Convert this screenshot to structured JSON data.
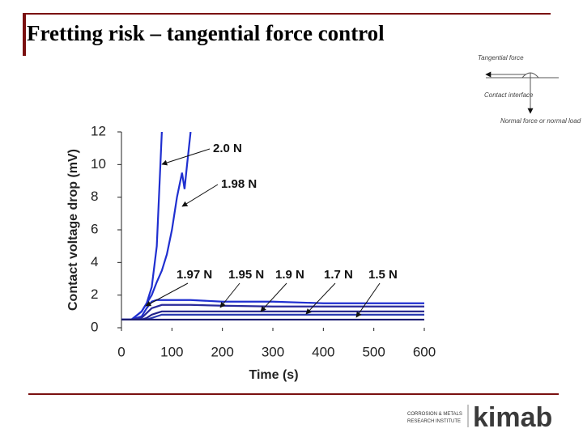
{
  "header": {
    "title": "Fretting risk – tangential force control"
  },
  "diagram": {
    "tangential": "Tangential force",
    "contact": "Contact interface",
    "normal": "Normal force or normal load"
  },
  "logo": {
    "line1": "CORROSION & METALS",
    "line2": "RESEARCH INSTITUTE",
    "brand": "kimab"
  },
  "chart_data": {
    "type": "line",
    "xlabel": "Time (s)",
    "ylabel": "Contact voltage drop (mV)",
    "x": [
      0,
      20,
      40,
      50,
      60,
      70,
      80,
      90,
      100,
      110,
      120,
      125,
      130,
      137,
      200,
      300,
      400,
      500,
      600
    ],
    "xlim": [
      0,
      600
    ],
    "xticks": [
      0,
      100,
      200,
      300,
      400,
      500,
      600
    ],
    "ylim": [
      0,
      12
    ],
    "yticks": [
      0,
      2,
      4,
      6,
      8,
      10,
      12
    ],
    "grid": false,
    "series": [
      {
        "name": "2.0 N",
        "color": "#1f2fd0",
        "values": [
          0.5,
          0.5,
          1.0,
          1.5,
          2.5,
          5,
          12,
          null,
          null,
          null,
          null,
          null,
          null,
          null,
          null,
          null,
          null,
          null,
          null
        ]
      },
      {
        "name": "1.98 N",
        "color": "#1f2fd0",
        "values": [
          0.5,
          0.5,
          1.0,
          1.5,
          2.0,
          2.8,
          3.5,
          4.5,
          6,
          8,
          9.5,
          8.5,
          10,
          12,
          null,
          null,
          null,
          null,
          null
        ]
      },
      {
        "name": "1.97 N",
        "color": "#1f2fd0",
        "values": [
          0.5,
          0.5,
          0.7,
          1.2,
          1.6,
          1.7,
          1.7,
          1.7,
          1.7,
          1.7,
          1.7,
          1.7,
          1.7,
          1.7,
          1.6,
          1.6,
          1.5,
          1.5,
          1.5
        ]
      },
      {
        "name": "1.95 N",
        "color": "#2a2a9a",
        "values": [
          0.5,
          0.5,
          0.6,
          0.9,
          1.2,
          1.3,
          1.4,
          1.4,
          1.4,
          1.4,
          1.4,
          1.4,
          1.4,
          1.4,
          1.35,
          1.3,
          1.3,
          1.3,
          1.3
        ]
      },
      {
        "name": "1.9 N",
        "color": "#20208a",
        "values": [
          0.5,
          0.5,
          0.5,
          0.6,
          0.8,
          0.9,
          1.0,
          1.0,
          1.0,
          1.0,
          1.0,
          1.0,
          1.0,
          1.0,
          1.0,
          1.0,
          1.0,
          1.0,
          1.0
        ]
      },
      {
        "name": "1.7 N",
        "color": "#2a3ab0",
        "values": [
          0.5,
          0.5,
          0.5,
          0.5,
          0.6,
          0.7,
          0.8,
          0.8,
          0.8,
          0.8,
          0.8,
          0.8,
          0.8,
          0.8,
          0.8,
          0.8,
          0.8,
          0.8,
          0.8
        ]
      },
      {
        "name": "1.5 N",
        "color": "#1a1a70",
        "values": [
          0.5,
          0.5,
          0.5,
          0.5,
          0.5,
          0.5,
          0.5,
          0.5,
          0.5,
          0.5,
          0.5,
          0.5,
          0.5,
          0.5,
          0.5,
          0.5,
          0.5,
          0.5,
          0.5
        ]
      }
    ]
  }
}
